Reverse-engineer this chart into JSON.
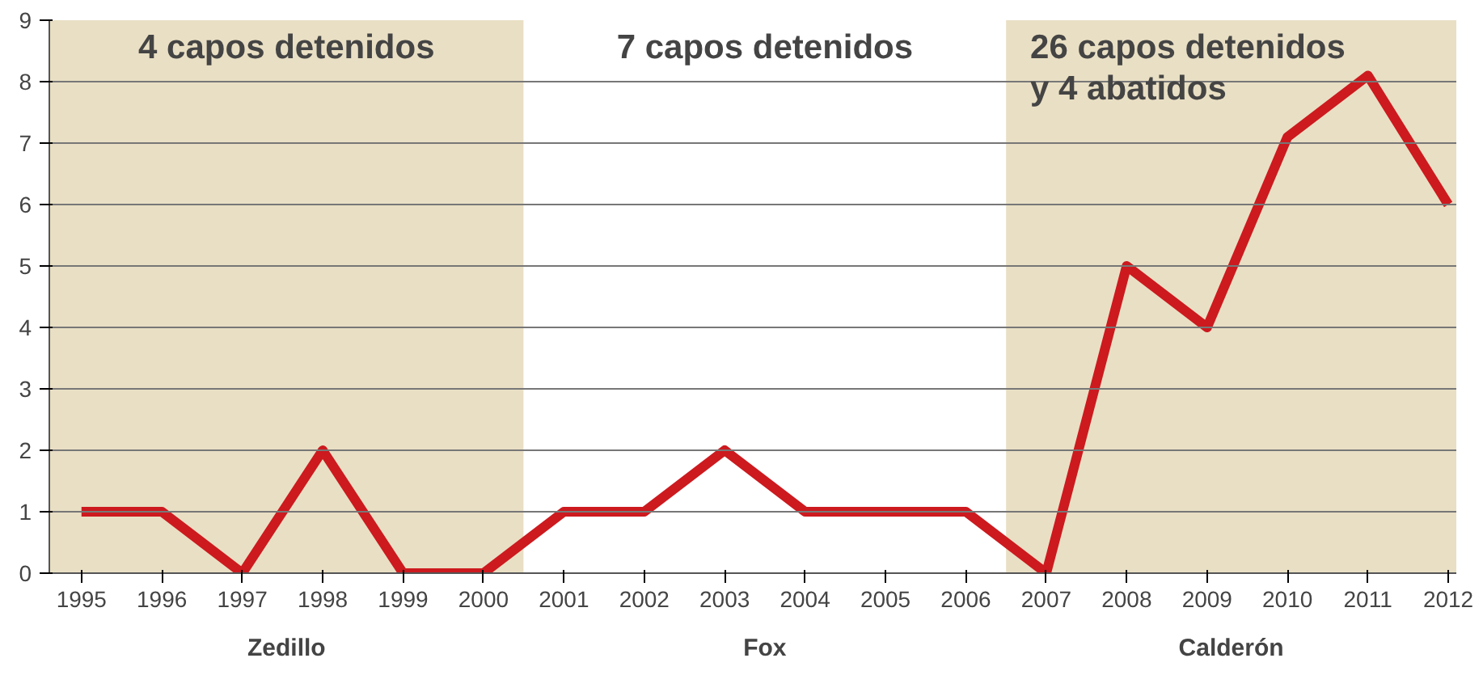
{
  "chart_data": {
    "type": "line",
    "x": [
      1995,
      1996,
      1997,
      1998,
      1999,
      2000,
      2001,
      2002,
      2003,
      2004,
      2005,
      2006,
      2007,
      2008,
      2009,
      2010,
      2011,
      2012
    ],
    "series": [
      {
        "color": "#cc1a1f",
        "values": [
          1,
          1,
          0,
          2,
          0,
          0,
          1,
          1,
          2,
          1,
          1,
          1,
          0,
          5,
          4,
          7.1,
          8.1,
          6
        ]
      }
    ],
    "xlim": [
      1994.6,
      2012.1
    ],
    "ylim": [
      0,
      9
    ],
    "xticks": [
      1995,
      1996,
      1997,
      1998,
      1999,
      2000,
      2001,
      2002,
      2003,
      2004,
      2005,
      2006,
      2007,
      2008,
      2009,
      2010,
      2011,
      2012
    ],
    "yticks": [
      0,
      1,
      2,
      3,
      4,
      5,
      6,
      7,
      8,
      9
    ],
    "bands": [
      {
        "axis": "x",
        "from": 1994.6,
        "to": 2000.5,
        "label": "Zedillo",
        "color": "#e9dfc4"
      },
      {
        "axis": "x",
        "from": 2000.5,
        "to": 2006.5,
        "label": "Fox",
        "color": "#ffffff"
      },
      {
        "axis": "x",
        "from": 2006.5,
        "to": 2012.1,
        "label": "Calderón",
        "color": "#e9dfc4"
      }
    ],
    "annotations": [
      "4 capos detenidos",
      "7 capos detenidos",
      "26 capos detenidos\ny 4 abatidos"
    ],
    "grid": "y",
    "marker": "none",
    "line_style": "solid"
  }
}
